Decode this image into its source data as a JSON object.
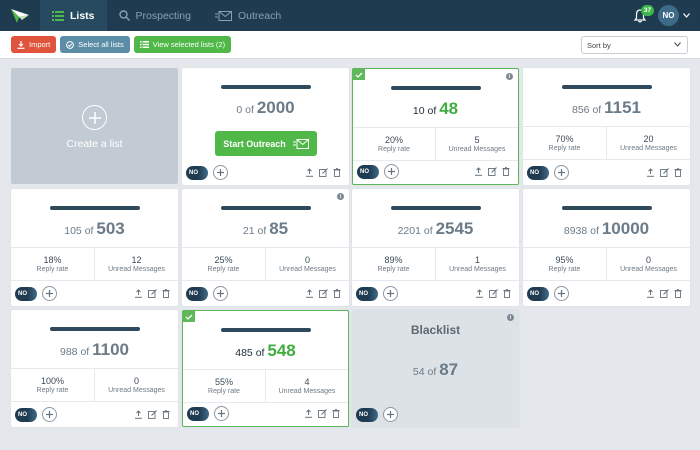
{
  "nav": {
    "logo_icon": "paper-plane-logo-icon",
    "tabs": [
      {
        "label": "Lists",
        "icon": "list-icon",
        "active": true
      },
      {
        "label": "Prospecting",
        "icon": "search-icon",
        "active": false
      },
      {
        "label": "Outreach",
        "icon": "envelope-icon",
        "active": false
      }
    ],
    "notifications_count": "37",
    "user_initials": "NO"
  },
  "toolbar": {
    "import_label": "Import",
    "select_all_label": "Select all lists",
    "view_selected_label": "View selected lists (2)",
    "sort_placeholder": "Sort by"
  },
  "create_card": {
    "label": "Create a list"
  },
  "cards": [
    {
      "done": "0",
      "total": "2000",
      "start_label": "Start Outreach",
      "toggle": "NO"
    },
    {
      "done": "10",
      "total": "48",
      "rate": "20%",
      "rate_label": "Reply rate",
      "unread": "5",
      "unread_label": "Unread Messages",
      "toggle": "NO",
      "selected": true
    },
    {
      "done": "856",
      "total": "1151",
      "rate": "70%",
      "rate_label": "Reply rate",
      "unread": "20",
      "unread_label": "Unread Messages",
      "toggle": "NO"
    },
    {
      "done": "105",
      "total": "503",
      "rate": "18%",
      "rate_label": "Reply rate",
      "unread": "12",
      "unread_label": "Unread Messages",
      "toggle": "NO"
    },
    {
      "done": "21",
      "total": "85",
      "rate": "25%",
      "rate_label": "Reply rate",
      "unread": "0",
      "unread_label": "Unread Messages",
      "toggle": "NO"
    },
    {
      "done": "2201",
      "total": "2545",
      "rate": "89%",
      "rate_label": "Reply rate",
      "unread": "1",
      "unread_label": "Unread Messages",
      "toggle": "NO"
    },
    {
      "done": "8938",
      "total": "10000",
      "rate": "95%",
      "rate_label": "Reply rate",
      "unread": "0",
      "unread_label": "Unread Messages",
      "toggle": "NO"
    },
    {
      "done": "988",
      "total": "1100",
      "rate": "100%",
      "rate_label": "Reply rate",
      "unread": "0",
      "unread_label": "Unread Messages",
      "toggle": "NO"
    },
    {
      "done": "485",
      "total": "548",
      "rate": "55%",
      "rate_label": "Reply rate",
      "unread": "4",
      "unread_label": "Unread Messages",
      "toggle": "NO",
      "selected": true
    }
  ],
  "blacklist": {
    "title": "Blacklist",
    "done": "54",
    "total": "87",
    "toggle": "NO"
  },
  "of_word": "of",
  "colors": {
    "topbar": "#1e3b4f",
    "accent_green": "#4fb848",
    "import_red": "#e0533d",
    "select_blue": "#5b8ea6"
  }
}
